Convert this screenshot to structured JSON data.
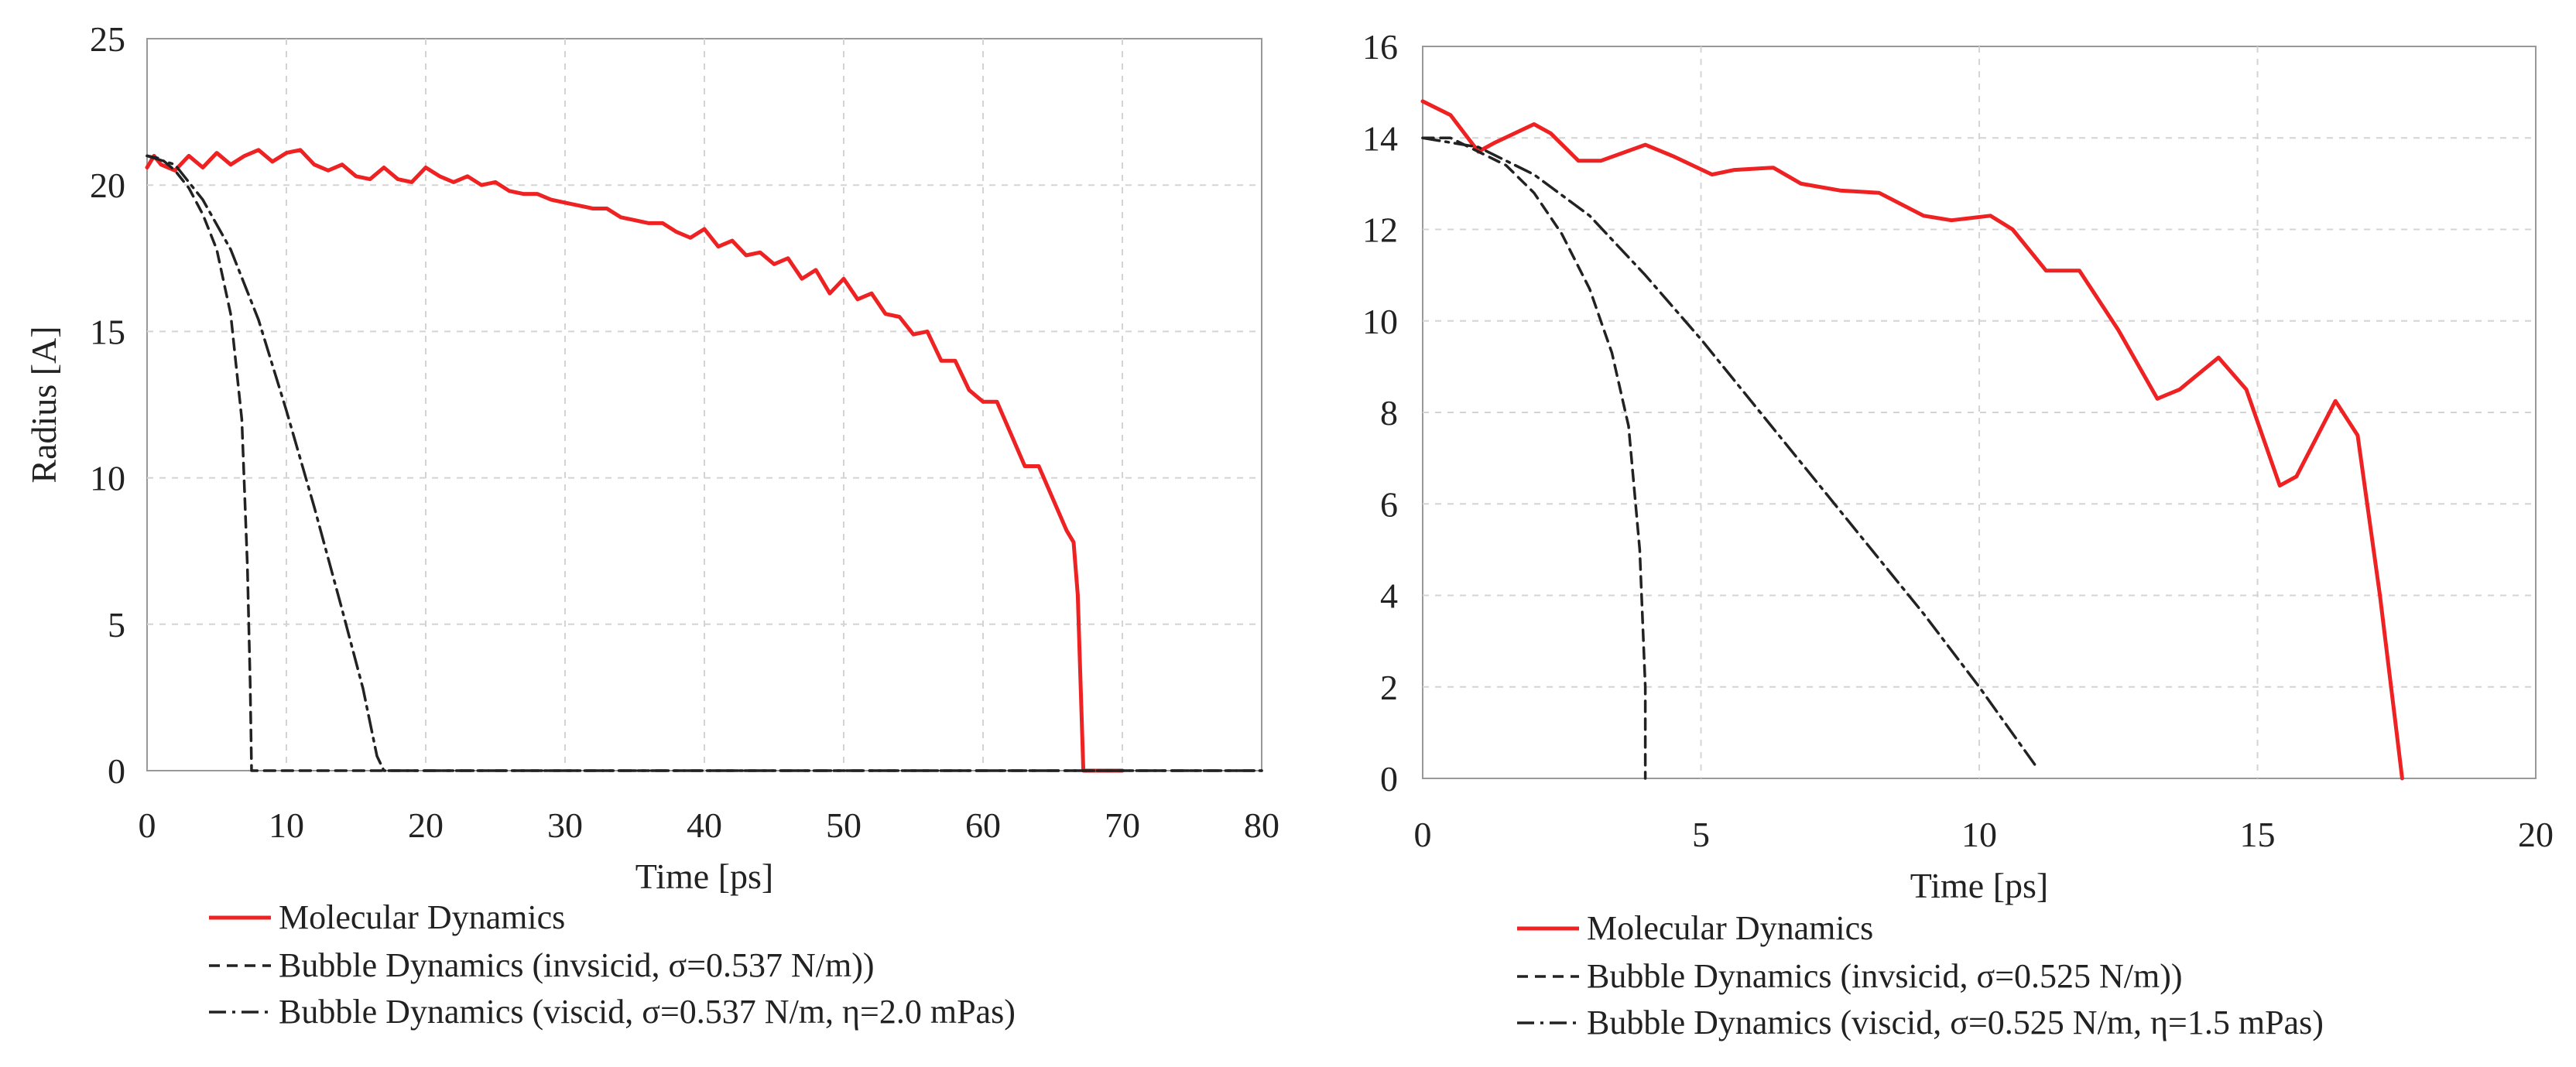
{
  "chart_data": [
    {
      "type": "line",
      "title": "",
      "xlabel": "Time [ps]",
      "ylabel": "Radius [A]",
      "xlim": [
        0,
        80
      ],
      "ylim": [
        0,
        25
      ],
      "xticks": [
        0,
        10,
        20,
        30,
        40,
        50,
        60,
        70,
        80
      ],
      "yticks": [
        0,
        5,
        10,
        15,
        20,
        25
      ],
      "xtick_labels": [
        "0",
        "10",
        "20",
        "30",
        "40",
        "50",
        "60",
        "70",
        "80"
      ],
      "ytick_labels": [
        "0",
        "5",
        "10",
        "15",
        "20",
        "25"
      ],
      "grid": true,
      "legend_position": "bottom",
      "series": [
        {
          "name": "Molecular Dynamics",
          "style": "solid",
          "color": "#ee2222",
          "points": [
            [
              0,
              20.6
            ],
            [
              0.5,
              21
            ],
            [
              1,
              20.7
            ],
            [
              2,
              20.5
            ],
            [
              3,
              21
            ],
            [
              4,
              20.6
            ],
            [
              5,
              21.1
            ],
            [
              6,
              20.7
            ],
            [
              7,
              21
            ],
            [
              8,
              21.2
            ],
            [
              9,
              20.8
            ],
            [
              10,
              21.1
            ],
            [
              11,
              21.2
            ],
            [
              12,
              20.7
            ],
            [
              13,
              20.5
            ],
            [
              14,
              20.7
            ],
            [
              15,
              20.3
            ],
            [
              16,
              20.2
            ],
            [
              17,
              20.6
            ],
            [
              18,
              20.2
            ],
            [
              19,
              20.1
            ],
            [
              20,
              20.6
            ],
            [
              21,
              20.3
            ],
            [
              22,
              20.1
            ],
            [
              23,
              20.3
            ],
            [
              24,
              20
            ],
            [
              25,
              20.1
            ],
            [
              26,
              19.8
            ],
            [
              27,
              19.7
            ],
            [
              28,
              19.7
            ],
            [
              29,
              19.5
            ],
            [
              30,
              19.4
            ],
            [
              31,
              19.3
            ],
            [
              32,
              19.2
            ],
            [
              33,
              19.2
            ],
            [
              34,
              18.9
            ],
            [
              35,
              18.8
            ],
            [
              36,
              18.7
            ],
            [
              37,
              18.7
            ],
            [
              38,
              18.4
            ],
            [
              39,
              18.2
            ],
            [
              40,
              18.5
            ],
            [
              41,
              17.9
            ],
            [
              42,
              18.1
            ],
            [
              43,
              17.6
            ],
            [
              44,
              17.7
            ],
            [
              45,
              17.3
            ],
            [
              46,
              17.5
            ],
            [
              47,
              16.8
            ],
            [
              48,
              17.1
            ],
            [
              49,
              16.3
            ],
            [
              50,
              16.8
            ],
            [
              51,
              16.1
            ],
            [
              52,
              16.3
            ],
            [
              53,
              15.6
            ],
            [
              54,
              15.5
            ],
            [
              55,
              14.9
            ],
            [
              56,
              15
            ],
            [
              57,
              14
            ],
            [
              58,
              14
            ],
            [
              59,
              13
            ],
            [
              60,
              12.6
            ],
            [
              61,
              12.6
            ],
            [
              62,
              11.5
            ],
            [
              63,
              10.4
            ],
            [
              64,
              10.4
            ],
            [
              65,
              9.3
            ],
            [
              66,
              8.2
            ],
            [
              66.5,
              7.8
            ],
            [
              66.8,
              6
            ],
            [
              67,
              3
            ],
            [
              67.2,
              0
            ],
            [
              70,
              0
            ]
          ]
        },
        {
          "name": "Bubble Dynamics (invsicid, σ=0.537 N/m))",
          "style": "dashed",
          "color": "#222222",
          "points": [
            [
              0,
              21
            ],
            [
              1,
              20.9
            ],
            [
              2,
              20.5
            ],
            [
              3,
              19.9
            ],
            [
              4,
              19
            ],
            [
              5,
              17.8
            ],
            [
              6,
              15.6
            ],
            [
              6.8,
              12
            ],
            [
              7.2,
              7
            ],
            [
              7.4,
              3
            ],
            [
              7.5,
              0
            ],
            [
              80,
              0
            ]
          ]
        },
        {
          "name": "Bubble Dynamics (viscid, σ=0.537 N/m, η=2.0 mPas)",
          "style": "dashdot",
          "color": "#222222",
          "points": [
            [
              0,
              21
            ],
            [
              2,
              20.7
            ],
            [
              4,
              19.5
            ],
            [
              6,
              17.8
            ],
            [
              8,
              15.4
            ],
            [
              10,
              12.3
            ],
            [
              12,
              9
            ],
            [
              14,
              5.5
            ],
            [
              15.5,
              2.8
            ],
            [
              16.5,
              0.5
            ],
            [
              17,
              0
            ],
            [
              80,
              0
            ]
          ]
        }
      ]
    },
    {
      "type": "line",
      "title": "",
      "xlabel": "Time [ps]",
      "ylabel": "",
      "xlim": [
        0,
        20
      ],
      "ylim": [
        0,
        16
      ],
      "xticks": [
        0,
        5,
        10,
        15,
        20
      ],
      "yticks": [
        0,
        2,
        4,
        6,
        8,
        10,
        12,
        14,
        16
      ],
      "xtick_labels": [
        "0",
        "5",
        "10",
        "15",
        "20"
      ],
      "ytick_labels": [
        "0",
        "2",
        "4",
        "6",
        "8",
        "10",
        "12",
        "14",
        "16"
      ],
      "grid": true,
      "legend_position": "bottom",
      "series": [
        {
          "name": "Molecular Dynamics",
          "style": "solid",
          "color": "#ee2222",
          "points": [
            [
              0,
              14.8
            ],
            [
              0.5,
              14.5
            ],
            [
              1,
              13.7
            ],
            [
              1.3,
              13.9
            ],
            [
              2,
              14.3
            ],
            [
              2.3,
              14.1
            ],
            [
              2.8,
              13.5
            ],
            [
              3.2,
              13.5
            ],
            [
              4,
              13.85
            ],
            [
              4.5,
              13.6
            ],
            [
              5.2,
              13.2
            ],
            [
              5.6,
              13.3
            ],
            [
              6.3,
              13.35
            ],
            [
              6.8,
              13
            ],
            [
              7.5,
              12.85
            ],
            [
              8.2,
              12.8
            ],
            [
              9,
              12.3
            ],
            [
              9.5,
              12.2
            ],
            [
              10.2,
              12.3
            ],
            [
              10.6,
              12
            ],
            [
              11.2,
              11.1
            ],
            [
              11.8,
              11.1
            ],
            [
              12.5,
              9.8
            ],
            [
              13.2,
              8.3
            ],
            [
              13.6,
              8.5
            ],
            [
              14.3,
              9.2
            ],
            [
              14.8,
              8.5
            ],
            [
              15.4,
              6.4
            ],
            [
              15.7,
              6.6
            ],
            [
              16.4,
              8.25
            ],
            [
              16.8,
              7.5
            ],
            [
              17.2,
              4
            ],
            [
              17.5,
              1
            ],
            [
              17.6,
              0
            ]
          ]
        },
        {
          "name": "Bubble Dynamics (invsicid, σ=0.525 N/m))",
          "style": "dashed",
          "color": "#222222",
          "points": [
            [
              0,
              14
            ],
            [
              0.5,
              14
            ],
            [
              1,
              13.7
            ],
            [
              1.5,
              13.4
            ],
            [
              2,
              12.8
            ],
            [
              2.5,
              11.9
            ],
            [
              3,
              10.7
            ],
            [
              3.4,
              9.3
            ],
            [
              3.7,
              7.7
            ],
            [
              3.9,
              5
            ],
            [
              4,
              2
            ],
            [
              4,
              0
            ]
          ]
        },
        {
          "name": "Bubble Dynamics (viscid, σ=0.525 N/m, η=1.5 mPas)",
          "style": "dashdot",
          "color": "#222222",
          "points": [
            [
              0,
              14
            ],
            [
              1,
              13.8
            ],
            [
              2,
              13.2
            ],
            [
              3,
              12.3
            ],
            [
              4,
              11
            ],
            [
              5,
              9.6
            ],
            [
              6,
              8.1
            ],
            [
              7,
              6.6
            ],
            [
              8,
              5.1
            ],
            [
              9,
              3.6
            ],
            [
              10,
              2
            ],
            [
              11,
              0.3
            ]
          ]
        }
      ]
    }
  ]
}
